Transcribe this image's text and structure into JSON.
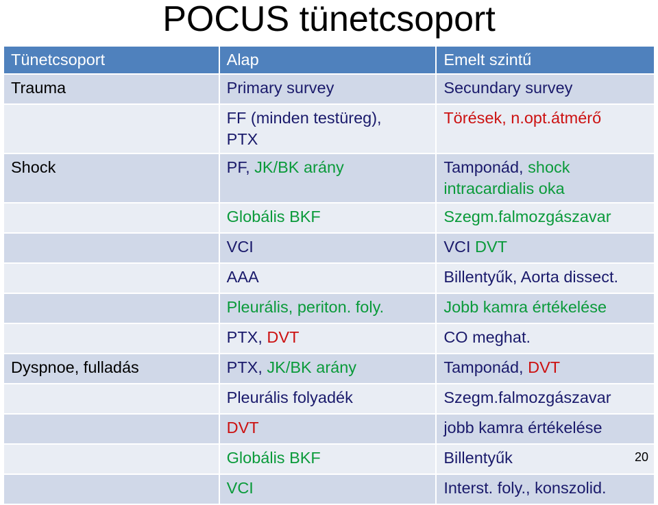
{
  "title": "POCUS tünetcsoport",
  "page_number": "20",
  "table": {
    "header": [
      "Tünetcsoport",
      "Alap",
      "Emelt szintű"
    ],
    "rows": [
      [
        [
          [
            {
              "text": "Trauma",
              "color": "#000000"
            }
          ]
        ],
        [
          [
            {
              "text": "Primary survey",
              "color": "#1a1a6b"
            }
          ]
        ],
        [
          [
            {
              "text": "Secundary survey",
              "color": "#1a1a6b"
            }
          ]
        ]
      ],
      [
        [],
        [
          [
            {
              "text": "FF (minden testüreg),",
              "color": "#1a1a6b"
            }
          ],
          [
            {
              "text": "PTX",
              "color": "#1a1a6b"
            }
          ]
        ],
        [
          [
            {
              "text": "Törések, n.opt.átmérő",
              "color": "#cc1111"
            }
          ]
        ]
      ],
      [
        [
          [
            {
              "text": "Shock",
              "color": "#000000"
            }
          ]
        ],
        [
          [
            {
              "text": "PF,",
              "color": "#1a1a6b"
            },
            {
              "text": " JK/BK arány",
              "color": "#0a9a3a"
            }
          ]
        ],
        [
          [
            {
              "text": "Tamponád,",
              "color": "#1a1a6b"
            },
            {
              "text": " shock",
              "color": "#0a9a3a"
            }
          ],
          [
            {
              "text": "intracardialis oka",
              "color": "#0a9a3a"
            }
          ]
        ]
      ],
      [
        [],
        [
          [
            {
              "text": "Globális BKF",
              "color": "#0a9a3a"
            }
          ]
        ],
        [
          [
            {
              "text": "Szegm.falmozgászavar",
              "color": "#0a9a3a"
            }
          ]
        ]
      ],
      [
        [],
        [
          [
            {
              "text": "VCI",
              "color": "#1a1a6b"
            }
          ]
        ],
        [
          [
            {
              "text": "VCI",
              "color": "#1a1a6b"
            },
            {
              "text": " DVT",
              "color": "#0a9a3a"
            }
          ]
        ]
      ],
      [
        [],
        [
          [
            {
              "text": "AAA",
              "color": "#1a1a6b"
            }
          ]
        ],
        [
          [
            {
              "text": "Billentyűk, Aorta dissect.",
              "color": "#1a1a6b"
            }
          ]
        ]
      ],
      [
        [],
        [
          [
            {
              "text": "Pleurális, periton. foly.",
              "color": "#0a9a3a"
            }
          ]
        ],
        [
          [
            {
              "text": "Jobb kamra értékelése",
              "color": "#0a9a3a"
            }
          ]
        ]
      ],
      [
        [],
        [
          [
            {
              "text": "PTX,",
              "color": "#1a1a6b"
            },
            {
              "text": " DVT",
              "color": "#cc1111"
            }
          ]
        ],
        [
          [
            {
              "text": "CO meghat.",
              "color": "#1a1a6b"
            }
          ]
        ]
      ],
      [
        [
          [
            {
              "text": "Dyspnoe, fulladás",
              "color": "#000000"
            }
          ]
        ],
        [
          [
            {
              "text": "PTX,",
              "color": "#1a1a6b"
            },
            {
              "text": " JK/BK arány",
              "color": "#0a9a3a"
            }
          ]
        ],
        [
          [
            {
              "text": "Tamponád,",
              "color": "#1a1a6b"
            },
            {
              "text": " DVT",
              "color": "#cc1111"
            }
          ]
        ]
      ],
      [
        [],
        [
          [
            {
              "text": "Pleurális folyadék",
              "color": "#1a1a6b"
            }
          ]
        ],
        [
          [
            {
              "text": "Szegm.falmozgászavar",
              "color": "#1a1a6b"
            }
          ]
        ]
      ],
      [
        [],
        [
          [
            {
              "text": "DVT",
              "color": "#cc1111"
            }
          ]
        ],
        [
          [
            {
              "text": "jobb kamra értékelése",
              "color": "#1a1a6b"
            }
          ]
        ]
      ],
      [
        [],
        [
          [
            {
              "text": "Globális BKF",
              "color": "#0a9a3a"
            }
          ]
        ],
        [
          [
            {
              "text": "Billentyűk",
              "color": "#1a1a6b"
            }
          ]
        ]
      ],
      [
        [],
        [
          [
            {
              "text": "VCI",
              "color": "#0a9a3a"
            }
          ]
        ],
        [
          [
            {
              "text": "Interst. foly., konszolid.",
              "color": "#1a1a6b"
            }
          ]
        ]
      ]
    ]
  }
}
